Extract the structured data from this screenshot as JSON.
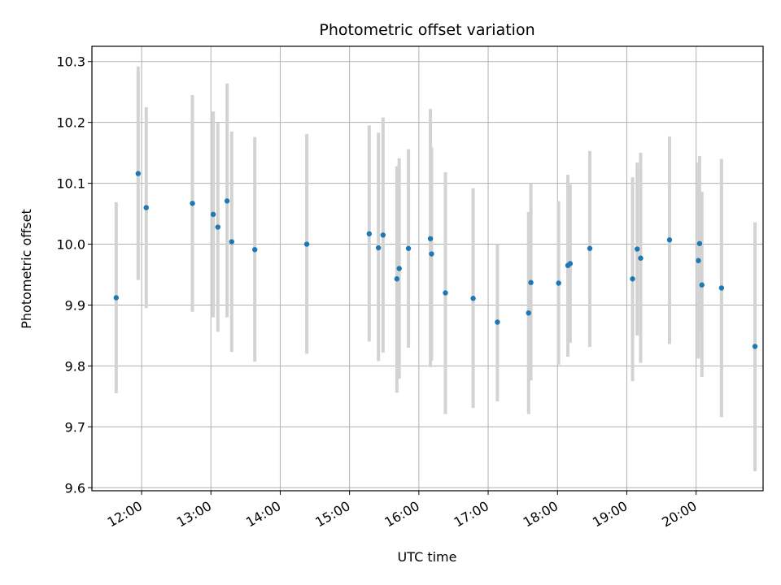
{
  "chart_data": {
    "type": "scatter",
    "title": "Photometric offset variation",
    "xlabel": "UTC time",
    "ylabel": "Photometric offset",
    "xlim": [
      "11:17",
      "20:58"
    ],
    "ylim": [
      9.595,
      10.325
    ],
    "grid": true,
    "x_ticks": [
      "12:00",
      "13:00",
      "14:00",
      "15:00",
      "16:00",
      "17:00",
      "18:00",
      "19:00",
      "20:00"
    ],
    "y_ticks": [
      9.6,
      9.7,
      9.8,
      9.9,
      10.0,
      10.1,
      10.2,
      10.3
    ],
    "y_tick_labels": [
      "9.6",
      "9.7",
      "9.8",
      "9.9",
      "10.0",
      "10.1",
      "10.2",
      "10.3"
    ],
    "colors": {
      "points": "#1f77b4",
      "error_bars": "#d3d3d3",
      "grid": "#b0b0b0"
    },
    "points": [
      {
        "x": "11:38",
        "y": 9.912,
        "low": 9.755,
        "high": 10.069
      },
      {
        "x": "11:57",
        "y": 10.116,
        "low": 9.941,
        "high": 10.292
      },
      {
        "x": "12:04",
        "y": 10.06,
        "low": 9.895,
        "high": 10.225
      },
      {
        "x": "12:44",
        "y": 10.067,
        "low": 9.889,
        "high": 10.245
      },
      {
        "x": "13:02",
        "y": 10.049,
        "low": 9.88,
        "high": 10.218
      },
      {
        "x": "13:06",
        "y": 10.028,
        "low": 9.856,
        "high": 10.199
      },
      {
        "x": "13:14",
        "y": 10.071,
        "low": 9.88,
        "high": 10.264
      },
      {
        "x": "13:18",
        "y": 10.004,
        "low": 9.823,
        "high": 10.185
      },
      {
        "x": "13:38",
        "y": 9.991,
        "low": 9.807,
        "high": 10.176
      },
      {
        "x": "14:23",
        "y": 10.0,
        "low": 9.82,
        "high": 10.181
      },
      {
        "x": "15:17",
        "y": 10.017,
        "low": 9.84,
        "high": 10.195
      },
      {
        "x": "15:25",
        "y": 9.994,
        "low": 9.808,
        "high": 10.183
      },
      {
        "x": "15:29",
        "y": 10.015,
        "low": 9.822,
        "high": 10.208
      },
      {
        "x": "15:41",
        "y": 9.943,
        "low": 9.756,
        "high": 10.128
      },
      {
        "x": "15:43",
        "y": 9.96,
        "low": 9.779,
        "high": 10.141
      },
      {
        "x": "15:51",
        "y": 9.993,
        "low": 9.83,
        "high": 10.156
      },
      {
        "x": "16:10",
        "y": 10.009,
        "low": 9.798,
        "high": 10.222
      },
      {
        "x": "16:11",
        "y": 9.984,
        "low": 9.809,
        "high": 10.159
      },
      {
        "x": "16:23",
        "y": 9.92,
        "low": 9.721,
        "high": 10.118
      },
      {
        "x": "16:47",
        "y": 9.911,
        "low": 9.731,
        "high": 10.092
      },
      {
        "x": "17:08",
        "y": 9.872,
        "low": 9.742,
        "high": 10.0
      },
      {
        "x": "17:35",
        "y": 9.887,
        "low": 9.721,
        "high": 10.053
      },
      {
        "x": "17:37",
        "y": 9.937,
        "low": 9.776,
        "high": 10.1
      },
      {
        "x": "18:01",
        "y": 9.936,
        "low": 9.802,
        "high": 10.071
      },
      {
        "x": "18:09",
        "y": 9.965,
        "low": 9.815,
        "high": 10.114
      },
      {
        "x": "18:11",
        "y": 9.968,
        "low": 9.838,
        "high": 10.098
      },
      {
        "x": "18:28",
        "y": 9.993,
        "low": 9.831,
        "high": 10.153
      },
      {
        "x": "19:05",
        "y": 9.943,
        "low": 9.775,
        "high": 10.11
      },
      {
        "x": "19:09",
        "y": 9.992,
        "low": 9.85,
        "high": 10.134
      },
      {
        "x": "19:12",
        "y": 9.977,
        "low": 9.805,
        "high": 10.15
      },
      {
        "x": "19:37",
        "y": 10.007,
        "low": 9.836,
        "high": 10.177
      },
      {
        "x": "20:02",
        "y": 9.973,
        "low": 9.812,
        "high": 10.134
      },
      {
        "x": "20:03",
        "y": 10.001,
        "low": 9.855,
        "high": 10.145
      },
      {
        "x": "20:05",
        "y": 9.933,
        "low": 9.782,
        "high": 10.086
      },
      {
        "x": "20:22",
        "y": 9.928,
        "low": 9.716,
        "high": 10.14
      },
      {
        "x": "20:51",
        "y": 9.832,
        "low": 9.627,
        "high": 10.036
      }
    ]
  }
}
